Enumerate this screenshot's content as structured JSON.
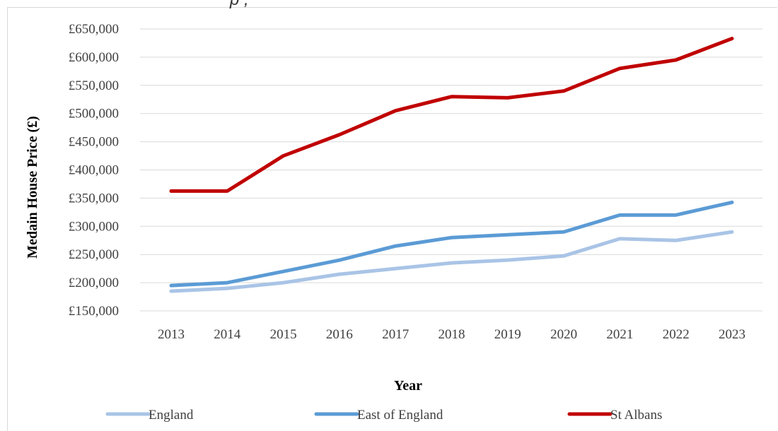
{
  "chart_data": {
    "type": "line",
    "title_fragment": "p      ,",
    "xlabel": "Year",
    "ylabel": "Medain House Price (£)",
    "categories": [
      "2013",
      "2014",
      "2015",
      "2016",
      "2017",
      "2018",
      "2019",
      "2020",
      "2021",
      "2022",
      "2023"
    ],
    "y_ticks": [
      "£150,000",
      "£200,000",
      "£250,000",
      "£300,000",
      "£350,000",
      "£400,000",
      "£450,000",
      "£500,000",
      "£550,000",
      "£600,000",
      "£650,000"
    ],
    "ylim": [
      150000,
      650000
    ],
    "grid": true,
    "legend_position": "bottom",
    "series": [
      {
        "name": "England",
        "color": "#a9c4e6",
        "values": [
          185000,
          190000,
          200000,
          215000,
          225000,
          235000,
          240000,
          247500,
          278000,
          275000,
          290000
        ]
      },
      {
        "name": "East of England",
        "color": "#5b9bd5",
        "values": [
          195000,
          200000,
          220000,
          240000,
          265000,
          280000,
          285000,
          290000,
          320000,
          320000,
          342500
        ]
      },
      {
        "name": "St Albans",
        "color": "#c00000",
        "values": [
          362500,
          362500,
          425000,
          462500,
          505000,
          530000,
          528000,
          540000,
          580000,
          595000,
          633000
        ]
      }
    ]
  }
}
